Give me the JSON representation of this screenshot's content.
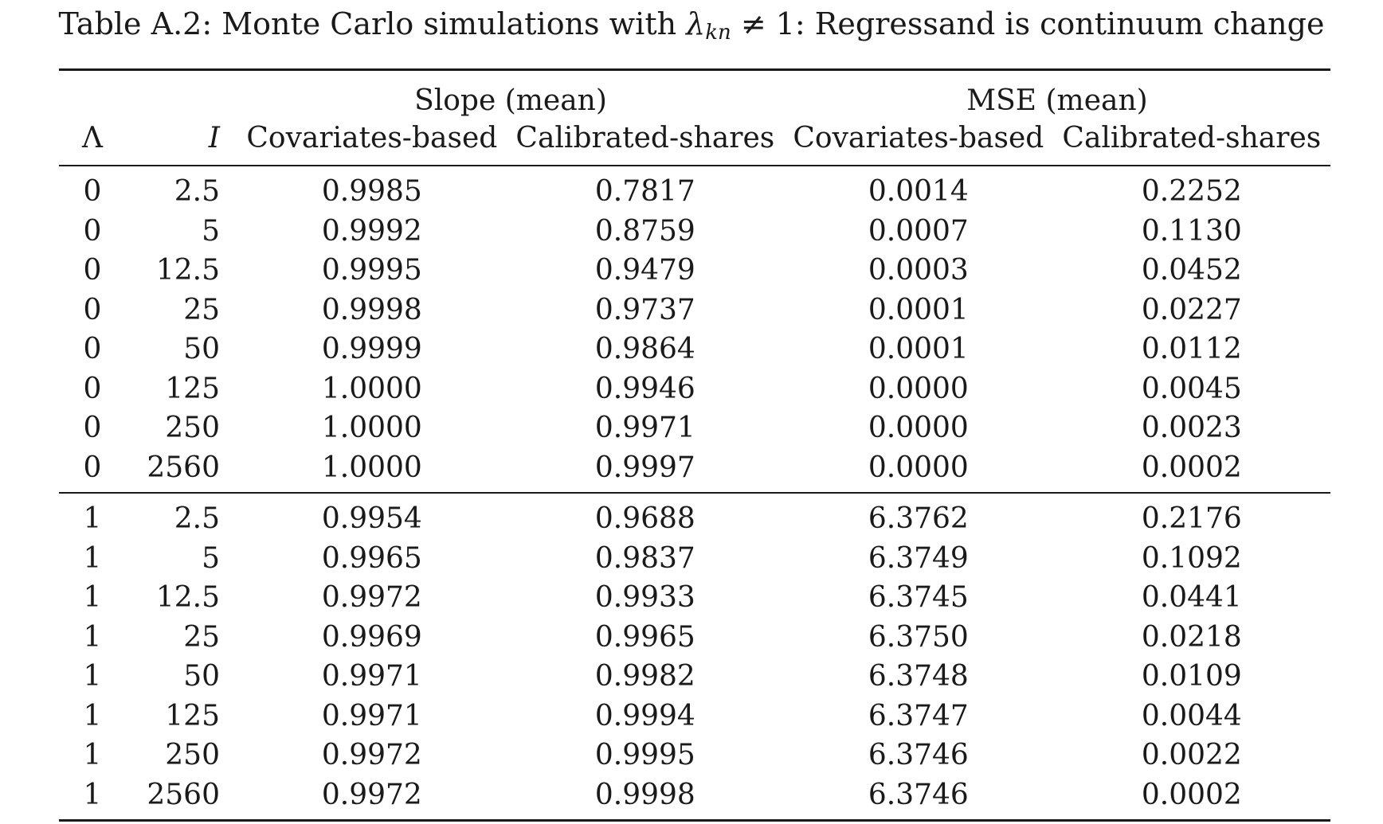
{
  "caption": {
    "prefix": "Table A.2: Monte Carlo simulations with ",
    "lambda": "λ",
    "subscript": "kn",
    "relation": " ≠ 1",
    "suffix": ": Regressand is continuum change"
  },
  "table": {
    "group_headers": [
      "Slope (mean)",
      "MSE (mean)"
    ],
    "columns": [
      "Λ",
      "I",
      "Covariates-based",
      "Calibrated-shares",
      "Covariates-based",
      "Calibrated-shares"
    ],
    "blocks": [
      {
        "rows": [
          [
            "0",
            "2.5",
            "0.9985",
            "0.7817",
            "0.0014",
            "0.2252"
          ],
          [
            "0",
            "5",
            "0.9992",
            "0.8759",
            "0.0007",
            "0.1130"
          ],
          [
            "0",
            "12.5",
            "0.9995",
            "0.9479",
            "0.0003",
            "0.0452"
          ],
          [
            "0",
            "25",
            "0.9998",
            "0.9737",
            "0.0001",
            "0.0227"
          ],
          [
            "0",
            "50",
            "0.9999",
            "0.9864",
            "0.0001",
            "0.0112"
          ],
          [
            "0",
            "125",
            "1.0000",
            "0.9946",
            "0.0000",
            "0.0045"
          ],
          [
            "0",
            "250",
            "1.0000",
            "0.9971",
            "0.0000",
            "0.0023"
          ],
          [
            "0",
            "2560",
            "1.0000",
            "0.9997",
            "0.0000",
            "0.0002"
          ]
        ]
      },
      {
        "rows": [
          [
            "1",
            "2.5",
            "0.9954",
            "0.9688",
            "6.3762",
            "0.2176"
          ],
          [
            "1",
            "5",
            "0.9965",
            "0.9837",
            "6.3749",
            "0.1092"
          ],
          [
            "1",
            "12.5",
            "0.9972",
            "0.9933",
            "6.3745",
            "0.0441"
          ],
          [
            "1",
            "25",
            "0.9969",
            "0.9965",
            "6.3750",
            "0.0218"
          ],
          [
            "1",
            "50",
            "0.9971",
            "0.9982",
            "6.3748",
            "0.0109"
          ],
          [
            "1",
            "125",
            "0.9971",
            "0.9994",
            "6.3747",
            "0.0044"
          ],
          [
            "1",
            "250",
            "0.9972",
            "0.9995",
            "6.3746",
            "0.0022"
          ],
          [
            "1",
            "2560",
            "0.9972",
            "0.9998",
            "6.3746",
            "0.0002"
          ]
        ]
      }
    ]
  }
}
